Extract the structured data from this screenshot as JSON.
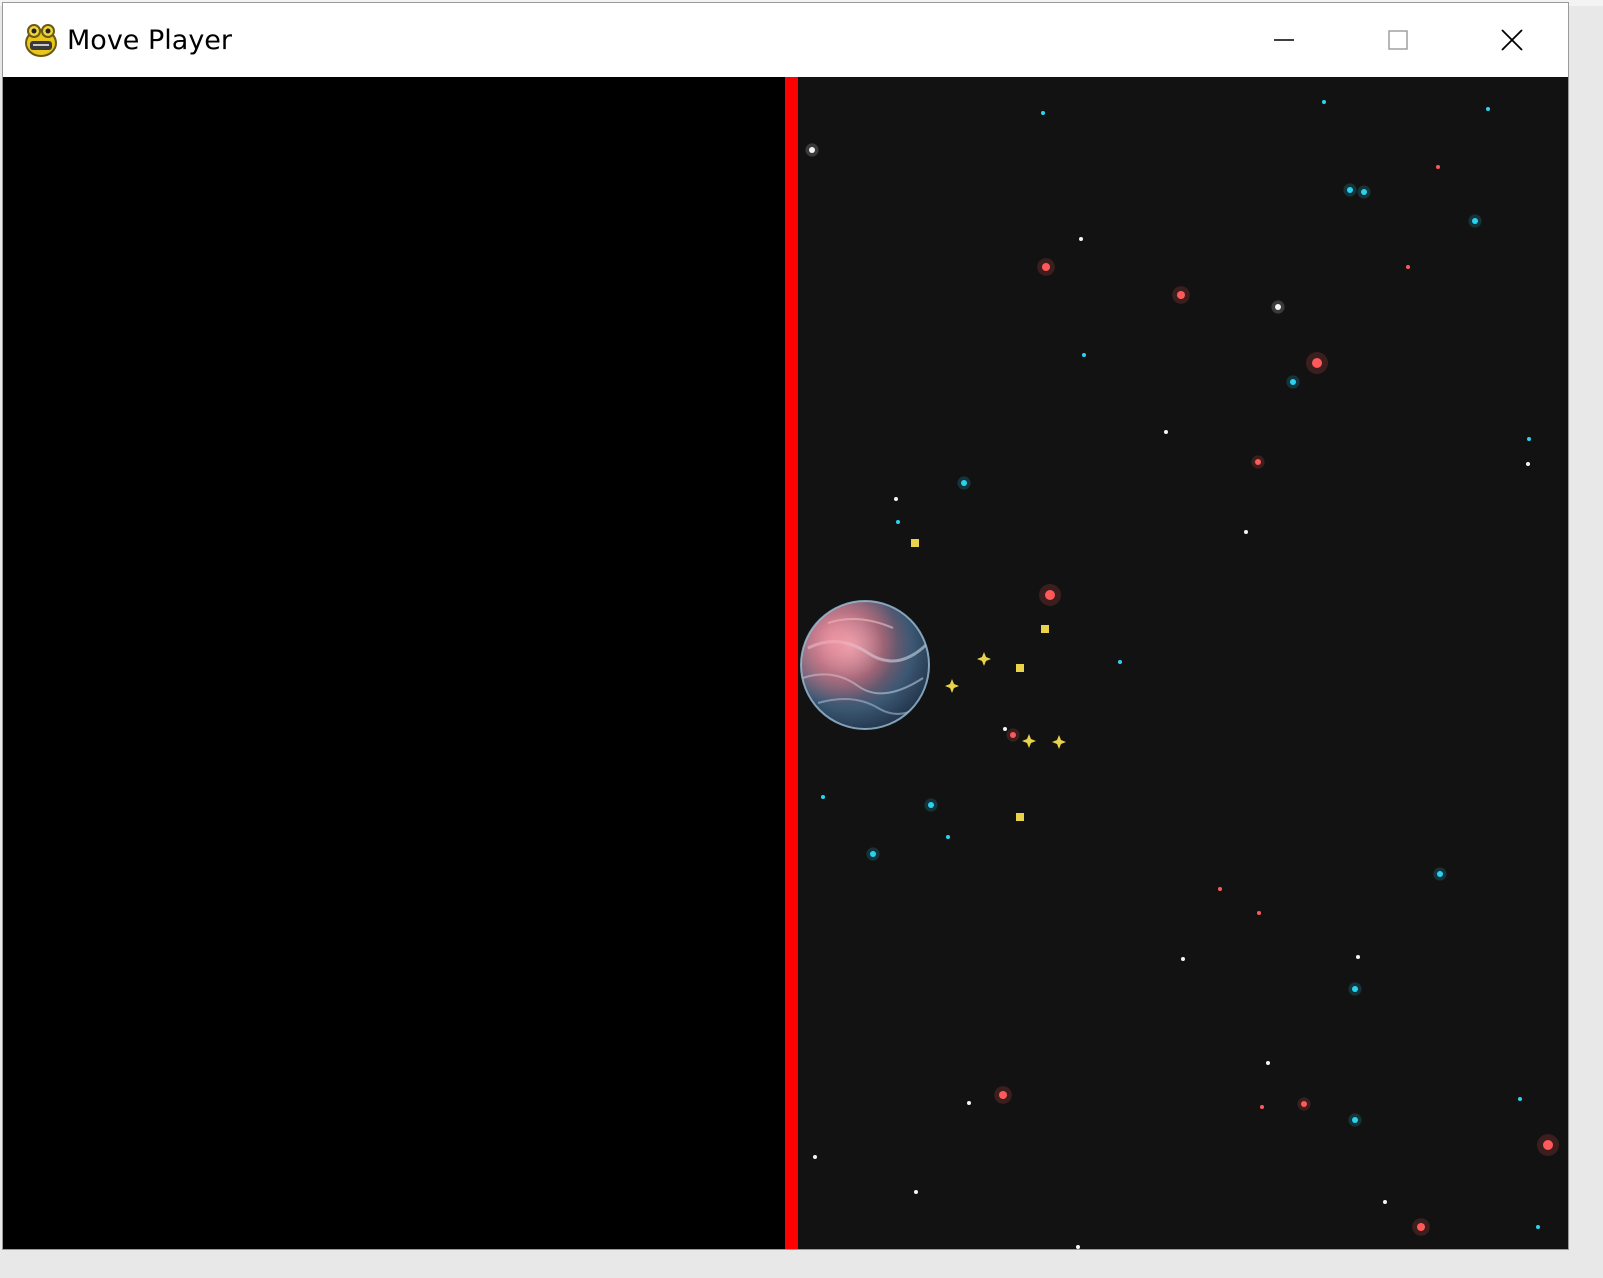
{
  "window": {
    "title": "Move Player",
    "controls": {
      "minimize": "minimize",
      "maximize": "maximize",
      "close": "close"
    }
  },
  "icons": {
    "app": "pygame-snake-icon",
    "minimize": "minimize-icon",
    "maximize": "maximize-icon",
    "close": "close-icon"
  },
  "colors": {
    "boundary": "#ff0000",
    "void": "#000000",
    "space": "#121212",
    "star_cyan": "#29d4f2",
    "star_red": "#ff5a5a",
    "star_yellow": "#e8d34a",
    "star_white": "#f4f4f4"
  }
}
